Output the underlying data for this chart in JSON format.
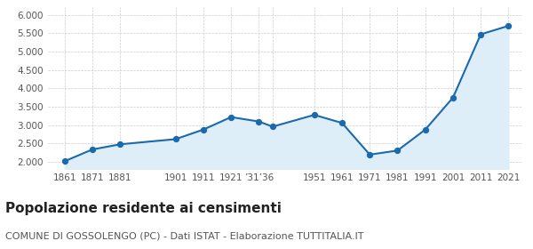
{
  "years": [
    1861,
    1871,
    1881,
    1901,
    1911,
    1921,
    1931,
    1936,
    1951,
    1961,
    1971,
    1981,
    1991,
    2001,
    2011,
    2021
  ],
  "population": [
    2020,
    2340,
    2480,
    2620,
    2880,
    3220,
    3100,
    2960,
    3280,
    3060,
    2200,
    2310,
    2880,
    3750,
    5470,
    5700
  ],
  "tick_years": [
    1861,
    1871,
    1881,
    1901,
    1911,
    1921,
    1931,
    1936,
    1951,
    1961,
    1971,
    1981,
    1991,
    2001,
    2011,
    2021
  ],
  "tick_labels": [
    "1861",
    "1871",
    "1881",
    "1901",
    "1911",
    "1921",
    "’31’36",
    "",
    "1951",
    "1961",
    "1971",
    "1981",
    "1991",
    "2001",
    "2011",
    "2021"
  ],
  "title": "Popolazione residente ai censimenti",
  "subtitle": "COMUNE DI GOSSOLENGO (PC) - Dati ISTAT - Elaborazione TUTTITALIA.IT",
  "ylim": [
    1800,
    6200
  ],
  "yticks": [
    2000,
    2500,
    3000,
    3500,
    4000,
    4500,
    5000,
    5500,
    6000
  ],
  "line_color": "#1a6aad",
  "fill_color": "#ddeef8",
  "marker_color": "#1a6aad",
  "grid_color": "#cccccc",
  "bg_color": "#ffffff",
  "title_fontsize": 11,
  "subtitle_fontsize": 8
}
